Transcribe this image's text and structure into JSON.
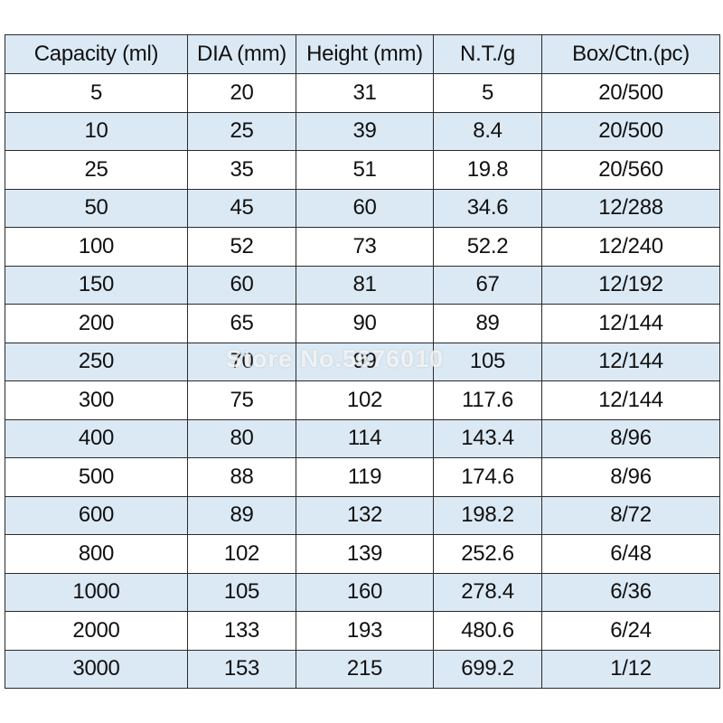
{
  "table": {
    "headers": [
      "Capacity (ml)",
      "DIA (mm)",
      "Height (mm)",
      "N.T./g",
      "Box/Ctn.(pc)"
    ],
    "rows": [
      [
        "5",
        "20",
        "31",
        "5",
        "20/500"
      ],
      [
        "10",
        "25",
        "39",
        "8.4",
        "20/500"
      ],
      [
        "25",
        "35",
        "51",
        "19.8",
        "20/560"
      ],
      [
        "50",
        "45",
        "60",
        "34.6",
        "12/288"
      ],
      [
        "100",
        "52",
        "73",
        "52.2",
        "12/240"
      ],
      [
        "150",
        "60",
        "81",
        "67",
        "12/192"
      ],
      [
        "200",
        "65",
        "90",
        "89",
        "12/144"
      ],
      [
        "250",
        "70",
        "99",
        "105",
        "12/144"
      ],
      [
        "300",
        "75",
        "102",
        "117.6",
        "12/144"
      ],
      [
        "400",
        "80",
        "114",
        "143.4",
        "8/96"
      ],
      [
        "500",
        "88",
        "119",
        "174.6",
        "8/96"
      ],
      [
        "600",
        "89",
        "132",
        "198.2",
        "8/72"
      ],
      [
        "800",
        "102",
        "139",
        "252.6",
        "6/48"
      ],
      [
        "1000",
        "105",
        "160",
        "278.4",
        "6/36"
      ],
      [
        "2000",
        "133",
        "193",
        "480.6",
        "6/24"
      ],
      [
        "3000",
        "153",
        "215",
        "699.2",
        "1/12"
      ]
    ]
  },
  "watermark": "Store No.5676010",
  "colors": {
    "stripe": "#dbe9f5",
    "border": "#2a2a2a"
  }
}
